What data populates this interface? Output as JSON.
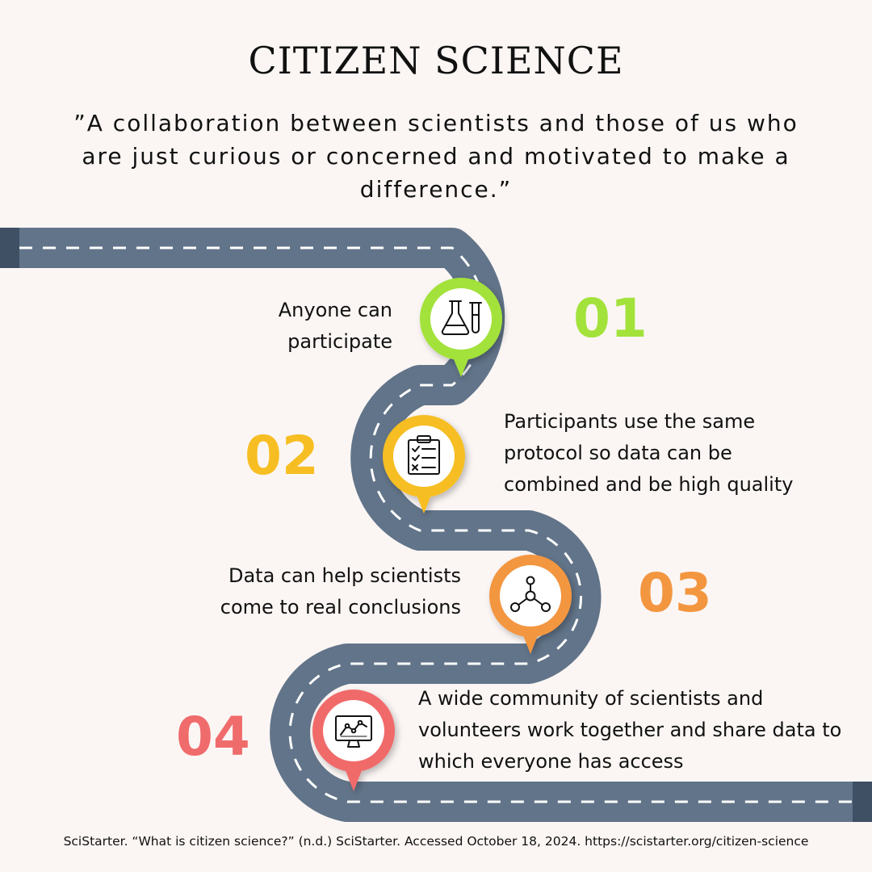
{
  "title": "CITIZEN SCIENCE",
  "quote": "”A collaboration between scientists and those of us who are just curious or concerned and motivated to make a difference.”",
  "steps": [
    {
      "number": "01",
      "text": "Anyone can participate",
      "color": "#a3e23b",
      "icon": "flask-test-tube-icon"
    },
    {
      "number": "02",
      "text": "Participants use the same protocol so data can be combined and be high quality",
      "color": "#f6be22",
      "icon": "clipboard-checklist-icon"
    },
    {
      "number": "03",
      "text": "Data can help scientists come to real conclusions",
      "color": "#f39640",
      "icon": "network-nodes-icon"
    },
    {
      "number": "04",
      "text": "A wide community of scientists and volunteers work together and share data to which everyone has access",
      "color": "#f06b6b",
      "icon": "monitor-chart-icon"
    }
  ],
  "road_color": "#627489",
  "citation": "SciStarter. “What is citizen science?” (n.d.) SciStarter. Accessed October 18, 2024. https://scistarter.org/citizen-science"
}
